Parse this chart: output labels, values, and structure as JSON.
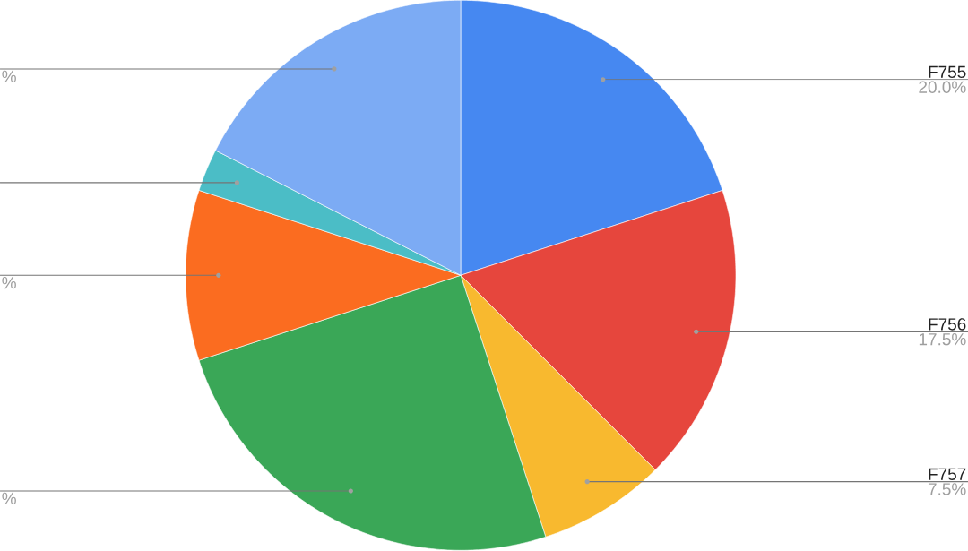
{
  "chart_data": {
    "type": "pie",
    "categories": [
      "F755",
      "F756",
      "F757",
      null,
      null,
      null,
      null
    ],
    "values": [
      20.0,
      17.5,
      7.5,
      25.0,
      10.0,
      2.5,
      17.5
    ],
    "colors": [
      "#4688f1",
      "#e6463d",
      "#f8b92f",
      "#3aa757",
      "#fb6c20",
      "#4bbdc6",
      "#7cabf4"
    ],
    "value_labels": [
      "20.0%",
      "17.5%",
      "7.5%",
      "%",
      "%",
      null,
      "%"
    ]
  }
}
